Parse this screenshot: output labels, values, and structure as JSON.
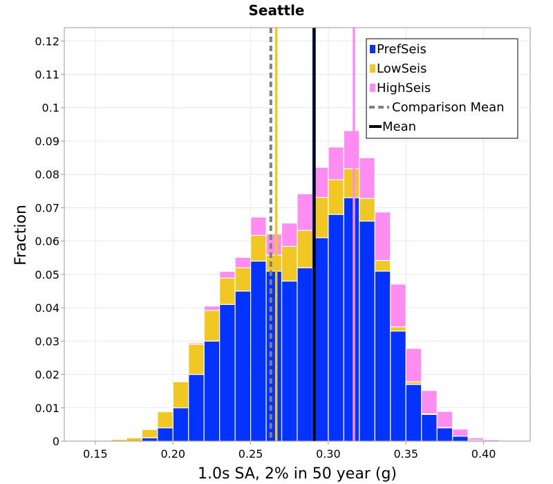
{
  "chart_data": {
    "type": "bar",
    "stacked": true,
    "title": "Seattle",
    "xlabel": "1.0s SA, 2% in 50 year (g)",
    "ylabel": "Fraction",
    "xlim": [
      0.13,
      0.43
    ],
    "ylim": [
      0,
      0.124
    ],
    "x_ticks": [
      0.15,
      0.2,
      0.25,
      0.3,
      0.35,
      0.4
    ],
    "x_tick_labels": [
      "0.15",
      "0.20",
      "0.25",
      "0.30",
      "0.35",
      "0.40"
    ],
    "y_ticks": [
      0,
      0.01,
      0.02,
      0.03,
      0.04,
      0.05,
      0.06,
      0.07,
      0.08,
      0.09,
      0.1,
      0.11,
      0.12
    ],
    "y_tick_labels": [
      "0",
      "0.01",
      "0.02",
      "0.03",
      "0.04",
      "0.05",
      "0.06",
      "0.07",
      "0.08",
      "0.09",
      "0.1",
      "0.11",
      "0.12"
    ],
    "grid": true,
    "legend_position": "top-right",
    "bin_width": 0.01,
    "bin_centers": [
      0.145,
      0.155,
      0.165,
      0.175,
      0.185,
      0.195,
      0.205,
      0.215,
      0.225,
      0.235,
      0.245,
      0.255,
      0.265,
      0.275,
      0.285,
      0.295,
      0.305,
      0.315,
      0.325,
      0.335,
      0.345,
      0.355,
      0.365,
      0.375,
      0.385,
      0.395,
      0.405,
      0.415
    ],
    "series": [
      {
        "name": "PrefSeis",
        "color": "#0433ff",
        "values": [
          0,
          0,
          0,
          0,
          0.001,
          0.004,
          0.01,
          0.02,
          0.03,
          0.041,
          0.045,
          0.054,
          0.051,
          0.048,
          0.052,
          0.061,
          0.068,
          0.073,
          0.066,
          0.051,
          0.033,
          0.017,
          0.008,
          0.004,
          0.0015,
          0.0003,
          0,
          0
        ]
      },
      {
        "name": "LowSeis",
        "color": "#f0c723",
        "values": [
          0,
          0.0002,
          0.0005,
          0.001,
          0.0025,
          0.0048,
          0.0078,
          0.0091,
          0.0092,
          0.0079,
          0.007,
          0.0077,
          0.0048,
          0.0104,
          0.0112,
          0.0121,
          0.0104,
          0.0087,
          0.0068,
          0.0032,
          0.0013,
          0.0008,
          0.0002,
          0.0001,
          0,
          0,
          0,
          0
        ]
      },
      {
        "name": "HighSeis",
        "color": "#ff8cf0",
        "values": [
          0,
          0,
          0,
          0,
          0,
          0,
          0,
          0.0004,
          0.0013,
          0.002,
          0.0031,
          0.0055,
          0.0063,
          0.007,
          0.011,
          0.009,
          0.0098,
          0.0114,
          0.0122,
          0.0145,
          0.0128,
          0.01,
          0.007,
          0.0048,
          0.0021,
          0.0007,
          0.0004,
          0
        ]
      }
    ],
    "vlines": [
      {
        "name": "Comparison Mean",
        "x": 0.263,
        "color": "#808080",
        "style": "dashed",
        "in_legend": true
      },
      {
        "name": "LowSeis mean",
        "x": 0.2665,
        "color": "#f0c723",
        "style": "solid",
        "in_legend": false
      },
      {
        "name": "PrefSeis mean",
        "x": 0.2905,
        "color": "#0433ff",
        "style": "solid",
        "in_legend": false
      },
      {
        "name": "Mean",
        "x": 0.291,
        "color": "#000000",
        "style": "solid",
        "in_legend": true
      },
      {
        "name": "HighSeis mean",
        "x": 0.3165,
        "color": "#ff8cf0",
        "style": "solid",
        "in_legend": false
      }
    ],
    "legend": [
      {
        "label": "PrefSeis",
        "color": "#0433ff",
        "kind": "box"
      },
      {
        "label": "LowSeis",
        "color": "#f0c723",
        "kind": "box"
      },
      {
        "label": "HighSeis",
        "color": "#ff8cf0",
        "kind": "box"
      },
      {
        "label": "Comparison Mean",
        "color": "#808080",
        "kind": "dash"
      },
      {
        "label": "Mean",
        "color": "#000000",
        "kind": "line"
      }
    ]
  }
}
